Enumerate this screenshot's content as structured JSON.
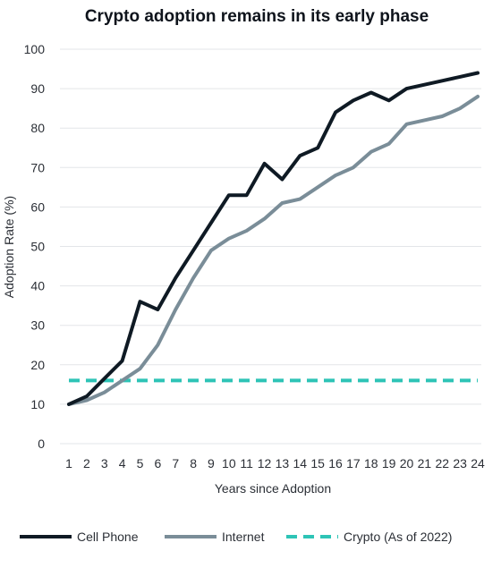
{
  "chart_data": {
    "type": "line",
    "title": "Crypto adoption remains in its early phase",
    "xlabel": "Years since Adoption",
    "ylabel": "Adoption Rate (%)",
    "x": [
      1,
      2,
      3,
      4,
      5,
      6,
      7,
      8,
      9,
      10,
      11,
      12,
      13,
      14,
      15,
      16,
      17,
      18,
      19,
      20,
      21,
      22,
      23,
      24
    ],
    "xlim": [
      1,
      24
    ],
    "ylim": [
      0,
      100
    ],
    "yticks": [
      0,
      10,
      20,
      30,
      40,
      50,
      60,
      70,
      80,
      90,
      100
    ],
    "grid": "horizontal",
    "legend_position": "bottom",
    "series": [
      {
        "name": "Cell Phone",
        "color": "#0f1a24",
        "style": "solid",
        "values": [
          10,
          12,
          16.5,
          21,
          36,
          34,
          42,
          49,
          56,
          63,
          63,
          71,
          67,
          73,
          75,
          84,
          87,
          89,
          87,
          90,
          91,
          92,
          93,
          94
        ]
      },
      {
        "name": "Internet",
        "color": "#7a8d98",
        "style": "solid",
        "values": [
          10,
          11,
          13,
          16,
          19,
          25,
          34,
          42,
          49,
          52,
          54,
          57,
          61,
          62,
          65,
          68,
          70,
          74,
          76,
          81,
          82,
          83,
          85,
          88
        ]
      },
      {
        "name": "Crypto (As of 2022)",
        "color": "#2ec4b6",
        "style": "dashed",
        "values": [
          16,
          16,
          16,
          16,
          16,
          16,
          16,
          16,
          16,
          16,
          16,
          16,
          16,
          16,
          16,
          16,
          16,
          16,
          16,
          16,
          16,
          16,
          16,
          16
        ]
      }
    ]
  }
}
